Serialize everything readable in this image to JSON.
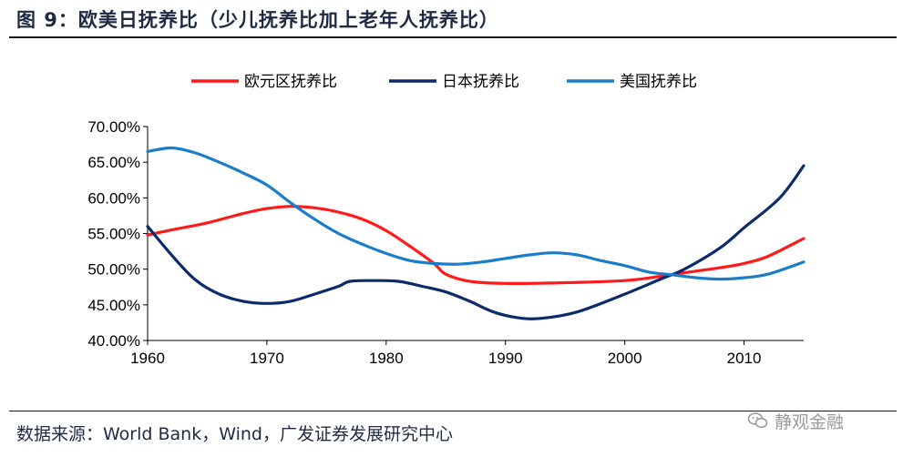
{
  "header": {
    "title": "图 9：欧美日抚养比（少儿抚养比加上老年人抚养比）"
  },
  "footer": {
    "source": "数据来源：World Bank，Wind，广发证券发展研究中心"
  },
  "watermark": {
    "text": "静观金融",
    "icon": "wechat-icon"
  },
  "chart_data": {
    "type": "line",
    "x_ticks": [
      1960,
      1970,
      1980,
      1990,
      2000,
      2010
    ],
    "y_ticks": [
      "40.00%",
      "45.00%",
      "50.00%",
      "55.00%",
      "60.00%",
      "65.00%",
      "70.00%"
    ],
    "xlim": [
      1960,
      2015
    ],
    "ylim": [
      40,
      70
    ],
    "legend_position": "top",
    "series": [
      {
        "name": "欧元区抚养比",
        "color": "#ff1a1a",
        "points": [
          [
            1960,
            54.8
          ],
          [
            1962,
            55.5
          ],
          [
            1965,
            56.5
          ],
          [
            1968,
            57.8
          ],
          [
            1970,
            58.5
          ],
          [
            1972,
            58.8
          ],
          [
            1974,
            58.6
          ],
          [
            1976,
            58.0
          ],
          [
            1978,
            57.0
          ],
          [
            1980,
            55.4
          ],
          [
            1982,
            53.2
          ],
          [
            1984,
            50.8
          ],
          [
            1985,
            49.3
          ],
          [
            1987,
            48.3
          ],
          [
            1990,
            48.0
          ],
          [
            1995,
            48.1
          ],
          [
            2000,
            48.4
          ],
          [
            2003,
            49.0
          ],
          [
            2005,
            49.5
          ],
          [
            2008,
            50.2
          ],
          [
            2010,
            50.8
          ],
          [
            2012,
            51.8
          ],
          [
            2015,
            54.3
          ]
        ]
      },
      {
        "name": "日本抚养比",
        "color": "#0d2a6b",
        "points": [
          [
            1960,
            56.0
          ],
          [
            1962,
            52.0
          ],
          [
            1964,
            48.5
          ],
          [
            1966,
            46.5
          ],
          [
            1968,
            45.5
          ],
          [
            1970,
            45.2
          ],
          [
            1972,
            45.5
          ],
          [
            1974,
            46.5
          ],
          [
            1976,
            47.6
          ],
          [
            1977,
            48.3
          ],
          [
            1979,
            48.4
          ],
          [
            1981,
            48.3
          ],
          [
            1983,
            47.6
          ],
          [
            1985,
            46.8
          ],
          [
            1987,
            45.5
          ],
          [
            1989,
            44.0
          ],
          [
            1991,
            43.2
          ],
          [
            1993,
            43.1
          ],
          [
            1996,
            44.0
          ],
          [
            2000,
            46.5
          ],
          [
            2003,
            48.6
          ],
          [
            2005,
            50.0
          ],
          [
            2008,
            53.0
          ],
          [
            2010,
            55.8
          ],
          [
            2013,
            60.0
          ],
          [
            2015,
            64.5
          ]
        ]
      },
      {
        "name": "美国抚养比",
        "color": "#1a7dc9",
        "points": [
          [
            1960,
            66.5
          ],
          [
            1962,
            67.0
          ],
          [
            1964,
            66.3
          ],
          [
            1966,
            65.0
          ],
          [
            1968,
            63.5
          ],
          [
            1970,
            61.8
          ],
          [
            1972,
            59.3
          ],
          [
            1974,
            57.0
          ],
          [
            1976,
            55.0
          ],
          [
            1978,
            53.5
          ],
          [
            1980,
            52.2
          ],
          [
            1982,
            51.2
          ],
          [
            1984,
            50.8
          ],
          [
            1986,
            50.7
          ],
          [
            1988,
            51.0
          ],
          [
            1990,
            51.5
          ],
          [
            1992,
            52.0
          ],
          [
            1994,
            52.3
          ],
          [
            1996,
            52.0
          ],
          [
            1998,
            51.2
          ],
          [
            2000,
            50.5
          ],
          [
            2002,
            49.6
          ],
          [
            2004,
            49.2
          ],
          [
            2006,
            48.8
          ],
          [
            2008,
            48.6
          ],
          [
            2010,
            48.8
          ],
          [
            2012,
            49.3
          ],
          [
            2015,
            51.0
          ]
        ]
      }
    ]
  }
}
